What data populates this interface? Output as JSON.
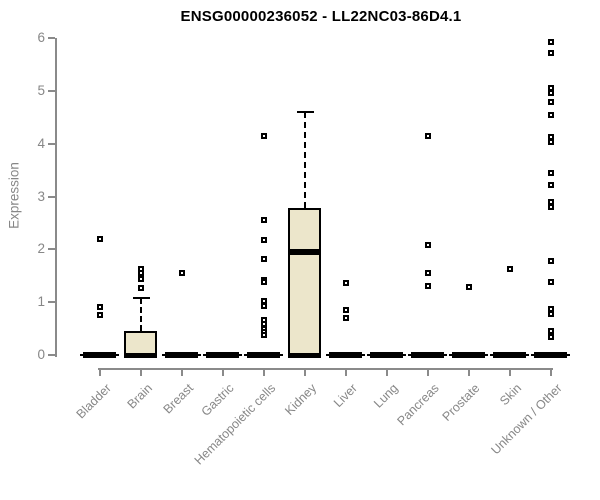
{
  "chart_data": {
    "type": "boxplot",
    "title": "ENSG00000236052 - LL22NC03-86D4.1",
    "ylabel": "Expression",
    "xlabel": "",
    "ylim": [
      0,
      6
    ],
    "yticks": [
      0,
      1,
      2,
      3,
      4,
      5,
      6
    ],
    "grid": false,
    "legend": "none",
    "categories": [
      "Bladder",
      "Brain",
      "Breast",
      "Gastric",
      "Hematopoietic cells",
      "Kidney",
      "Liver",
      "Lung",
      "Pancreas",
      "Prostate",
      "Skin",
      "Unknown / Other"
    ],
    "series": [
      {
        "category": "Bladder",
        "q1": 0,
        "median": 0,
        "q3": 0,
        "whisker_low": 0,
        "whisker_high": 0,
        "outliers": [
          2.2,
          0.9,
          0.75
        ]
      },
      {
        "category": "Brain",
        "q1": 0,
        "median": 0,
        "q3": 0.45,
        "whisker_low": 0,
        "whisker_high": 1.08,
        "outliers": [
          1.62,
          1.55,
          1.44,
          1.26
        ]
      },
      {
        "category": "Breast",
        "q1": 0,
        "median": 0,
        "q3": 0,
        "whisker_low": 0,
        "whisker_high": 0,
        "outliers": [
          1.55
        ]
      },
      {
        "category": "Gastric",
        "q1": 0,
        "median": 0,
        "q3": 0,
        "whisker_low": 0,
        "whisker_high": 0,
        "outliers": []
      },
      {
        "category": "Hematopoietic cells",
        "q1": 0,
        "median": 0,
        "q3": 0,
        "whisker_low": 0,
        "whisker_high": 0,
        "outliers": [
          4.15,
          2.55,
          2.18,
          1.81,
          1.42,
          1.38,
          1.02,
          0.93,
          0.66,
          0.58,
          0.5,
          0.44,
          0.37
        ]
      },
      {
        "category": "Kidney",
        "q1": 0,
        "median": 1.95,
        "q3": 2.78,
        "whisker_low": 0,
        "whisker_high": 4.6,
        "outliers": []
      },
      {
        "category": "Liver",
        "q1": 0,
        "median": 0,
        "q3": 0,
        "whisker_low": 0,
        "whisker_high": 0,
        "outliers": [
          1.36,
          0.85,
          0.7
        ]
      },
      {
        "category": "Lung",
        "q1": 0,
        "median": 0,
        "q3": 0,
        "whisker_low": 0,
        "whisker_high": 0,
        "outliers": []
      },
      {
        "category": "Pancreas",
        "q1": 0,
        "median": 0,
        "q3": 0,
        "whisker_low": 0,
        "whisker_high": 0,
        "outliers": [
          4.15,
          2.08,
          1.55,
          1.3
        ]
      },
      {
        "category": "Prostate",
        "q1": 0,
        "median": 0,
        "q3": 0,
        "whisker_low": 0,
        "whisker_high": 0,
        "outliers": [
          1.28
        ]
      },
      {
        "category": "Skin",
        "q1": 0,
        "median": 0,
        "q3": 0,
        "whisker_low": 0,
        "whisker_high": 0,
        "outliers": [
          1.63
        ]
      },
      {
        "category": "Unknown / Other",
        "q1": 0,
        "median": 0,
        "q3": 0,
        "whisker_low": 0,
        "whisker_high": 0,
        "outliers": [
          5.93,
          5.72,
          5.05,
          4.95,
          4.78,
          4.55,
          4.12,
          4.03,
          3.44,
          3.22,
          2.9,
          2.8,
          1.78,
          1.38,
          0.87,
          0.78,
          0.45,
          0.35
        ]
      }
    ],
    "colors": {
      "box_fill": "#ECE6CB",
      "box_border": "#000000",
      "median": "#000000",
      "axis": "#8a8a8a",
      "text": "#878787",
      "title": "#000000",
      "background": "#ffffff"
    }
  }
}
